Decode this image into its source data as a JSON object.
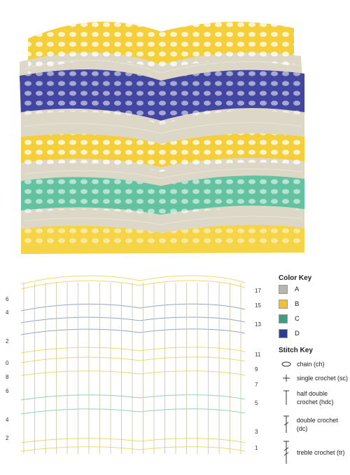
{
  "colors": {
    "A": "#d8d3c6",
    "B": "#f4cf3a",
    "C": "#5fbf9c",
    "D": "#3f3f9a"
  },
  "color_key": {
    "title": "Color Key",
    "items": [
      {
        "label": "A",
        "color": "#b9b6b0"
      },
      {
        "label": "B",
        "color": "#f2c12e"
      },
      {
        "label": "C",
        "color": "#3f9d86"
      },
      {
        "label": "D",
        "color": "#2b3f8f"
      }
    ]
  },
  "stitch_key": {
    "title": "Stitch Key",
    "items": [
      {
        "label": "chain (ch)",
        "icon": "oval-chain-icon"
      },
      {
        "label": "single crochet (sc)",
        "icon": "cross-sc-icon"
      },
      {
        "label_line1": "half double",
        "label_line2": "crochet (hdc)",
        "icon": "t-hdc-icon"
      },
      {
        "label": "double crochet (dc)",
        "icon": "t-slash-dc-icon"
      },
      {
        "label": "treble crochet (tr)",
        "icon": "t-double-slash-tr-icon"
      }
    ]
  },
  "right_row_numbers": [
    "17",
    "15",
    "13",
    "11",
    "9",
    "7",
    "5",
    "3",
    "1"
  ],
  "left_row_numbers": [
    "6",
    "4",
    "2",
    "0",
    "8",
    "6",
    "4",
    "2"
  ]
}
